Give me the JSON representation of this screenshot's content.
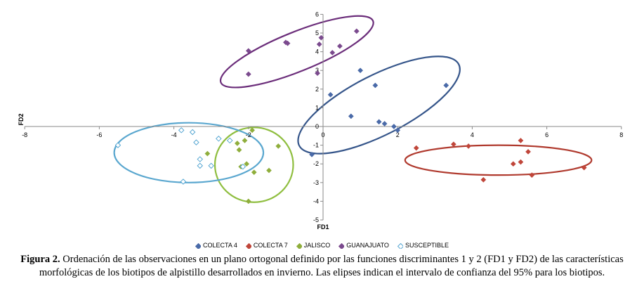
{
  "chart_data": {
    "type": "scatter",
    "xlabel": "FD1",
    "ylabel": "FD2",
    "xlim": [
      -8,
      8
    ],
    "ylim": [
      -5,
      6
    ],
    "x_ticks": [
      -8,
      -6,
      -4,
      -2,
      0,
      2,
      4,
      6,
      8
    ],
    "y_ticks": [
      -5,
      -4,
      -3,
      -2,
      -1,
      0,
      1,
      2,
      3,
      4,
      5,
      6
    ],
    "legend_position": "bottom",
    "series": [
      {
        "name": "COLECTA 4",
        "color": "#4a6aa8",
        "marker": "diamond-filled",
        "points": [
          [
            -0.3,
            -1.5
          ],
          [
            0.2,
            1.7
          ],
          [
            1.0,
            3.0
          ],
          [
            0.75,
            0.55
          ],
          [
            1.4,
            2.2
          ],
          [
            1.5,
            0.25
          ],
          [
            1.65,
            0.15
          ],
          [
            1.9,
            0.0
          ],
          [
            2.0,
            -0.2
          ],
          [
            3.3,
            2.2
          ]
        ],
        "ellipse": {
          "cx": 1.5,
          "cy": 1.15,
          "rx": 2.4,
          "ry": 1.6,
          "rotation_deg": -27,
          "color": "#35558a"
        }
      },
      {
        "name": "COLECTA 7",
        "color": "#c0463a",
        "marker": "diamond-filled",
        "points": [
          [
            2.5,
            -1.15
          ],
          [
            3.5,
            -0.95
          ],
          [
            3.9,
            -1.05
          ],
          [
            4.3,
            -2.85
          ],
          [
            5.1,
            -2.0
          ],
          [
            5.3,
            -1.9
          ],
          [
            5.3,
            -0.75
          ],
          [
            5.5,
            -1.35
          ],
          [
            5.6,
            -2.6
          ],
          [
            7.0,
            -2.2
          ]
        ],
        "ellipse": {
          "cx": 4.7,
          "cy": -1.8,
          "rx": 2.5,
          "ry": 0.8,
          "rotation_deg": 0,
          "color": "#b03a2e"
        }
      },
      {
        "name": "JALISCO",
        "color": "#8fae3c",
        "marker": "diamond-filled",
        "points": [
          [
            -3.1,
            -1.45
          ],
          [
            -2.3,
            -0.9
          ],
          [
            -2.25,
            -1.25
          ],
          [
            -2.1,
            -0.75
          ],
          [
            -2.05,
            -2.0
          ],
          [
            -2.2,
            -2.15
          ],
          [
            -1.9,
            -0.2
          ],
          [
            -1.85,
            -2.45
          ],
          [
            -1.45,
            -2.35
          ],
          [
            -2.0,
            -4.0
          ],
          [
            -1.2,
            -1.05
          ]
        ],
        "ellipse": {
          "cx": -1.85,
          "cy": -2.05,
          "rx": 1.05,
          "ry": 2.0,
          "rotation_deg": 0,
          "color": "#8fbe3f"
        }
      },
      {
        "name": "GUANAJUATO",
        "color": "#7b4a8e",
        "marker": "diamond-filled",
        "points": [
          [
            -2.0,
            4.05
          ],
          [
            -2.0,
            2.8
          ],
          [
            -1.0,
            4.5
          ],
          [
            -0.95,
            4.45
          ],
          [
            -0.1,
            4.4
          ],
          [
            -0.05,
            4.75
          ],
          [
            0.25,
            3.95
          ],
          [
            0.45,
            4.3
          ],
          [
            0.9,
            5.1
          ],
          [
            -0.15,
            2.85
          ]
        ],
        "ellipse": {
          "cx": -0.7,
          "cy": 4.0,
          "rx": 2.2,
          "ry": 1.05,
          "rotation_deg": -22,
          "color": "#6b2d7a"
        }
      },
      {
        "name": "SUSCEPTIBLE",
        "color": "#4aa0cf",
        "marker": "diamond-open",
        "points": [
          [
            -5.5,
            -1.0
          ],
          [
            -3.8,
            -0.2
          ],
          [
            -3.5,
            -0.3
          ],
          [
            -3.4,
            -0.85
          ],
          [
            -3.3,
            -1.75
          ],
          [
            -3.3,
            -2.1
          ],
          [
            -3.0,
            -2.1
          ],
          [
            -2.5,
            -0.75
          ],
          [
            -2.8,
            -0.65
          ],
          [
            -2.15,
            -2.15
          ],
          [
            -3.75,
            -2.95
          ]
        ],
        "ellipse": {
          "cx": -3.6,
          "cy": -1.4,
          "rx": 2.0,
          "ry": 1.6,
          "rotation_deg": 0,
          "color": "#5aa7cf"
        }
      }
    ]
  },
  "caption": {
    "label": "Figura 2.",
    "text": "Ordenación de las observaciones en un plano ortogonal definido por las funciones discriminantes 1 y 2 (FD1 y FD2) de las características morfológicas de los biotipos de alpistillo desarrollados en invierno. Las elipses indican el intervalo de confianza del 95% para los biotipos."
  }
}
